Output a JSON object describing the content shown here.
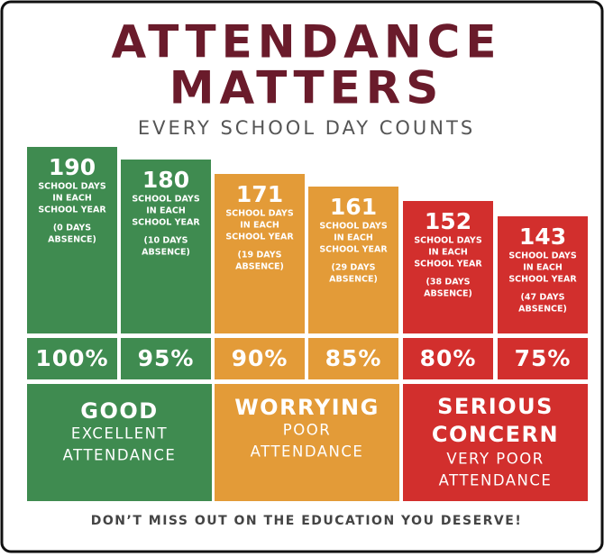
{
  "header": {
    "title_lines": [
      "ATTENDANCE",
      "MATTERS"
    ],
    "subtitle": "EVERY SCHOOL DAY COUNTS"
  },
  "columns": [
    {
      "days": "190",
      "label_lines": [
        "SCHOOL DAYS",
        "IN EACH",
        "SCHOOL YEAR"
      ],
      "absence_lines": [
        "(0 DAYS",
        "ABSENCE)"
      ],
      "percent": "100%"
    },
    {
      "days": "180",
      "label_lines": [
        "SCHOOL DAYS",
        "IN EACH",
        "SCHOOL YEAR"
      ],
      "absence_lines": [
        "(10 DAYS",
        "ABSENCE)"
      ],
      "percent": "95%"
    },
    {
      "days": "171",
      "label_lines": [
        "SCHOOL DAYS",
        "IN EACH",
        "SCHOOL YEAR"
      ],
      "absence_lines": [
        "(19 DAYS",
        "ABSENCE)"
      ],
      "percent": "90%"
    },
    {
      "days": "161",
      "label_lines": [
        "SCHOOL DAYS",
        "IN EACH",
        "SCHOOL YEAR"
      ],
      "absence_lines": [
        "(29 DAYS",
        "ABSENCE)"
      ],
      "percent": "85%"
    },
    {
      "days": "152",
      "label_lines": [
        "SCHOOL DAYS",
        "IN EACH",
        "SCHOOL YEAR"
      ],
      "absence_lines": [
        "(38 DAYS",
        "ABSENCE)"
      ],
      "percent": "80%"
    },
    {
      "days": "143",
      "label_lines": [
        "SCHOOL DAYS",
        "IN EACH",
        "SCHOOL YEAR"
      ],
      "absence_lines": [
        "(47 DAYS",
        "ABSENCE)"
      ],
      "percent": "75%"
    }
  ],
  "categories": [
    {
      "title_lines": [
        "GOOD"
      ],
      "subtitle_lines": [
        "EXCELLENT",
        "ATTENDANCE"
      ]
    },
    {
      "title_lines": [
        "WORRYING"
      ],
      "subtitle_lines": [
        "POOR",
        "ATTENDANCE"
      ]
    },
    {
      "title_lines": [
        "SERIOUS",
        "CONCERN"
      ],
      "subtitle_lines": [
        "VERY POOR",
        "ATTENDANCE"
      ]
    }
  ],
  "footer": "DON’T MISS OUT ON THE EDUCATION YOU DESERVE!"
}
